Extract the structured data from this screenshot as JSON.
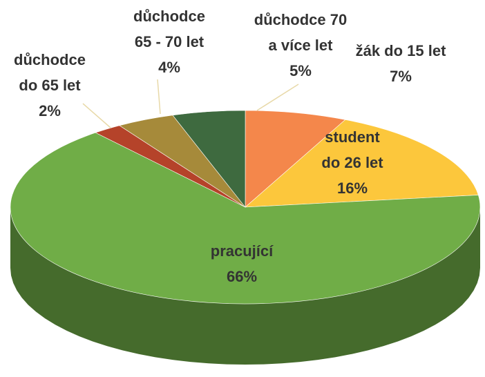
{
  "chart_data": {
    "type": "pie",
    "categories": [
      [
        "žák do 15 let"
      ],
      [
        "student",
        "do 26 let"
      ],
      [
        "pracující"
      ],
      [
        "důchodce",
        "do 65 let"
      ],
      [
        "důchodce",
        "65 - 70 let"
      ],
      [
        "důchodce 70",
        "a více let"
      ]
    ],
    "values": [
      7,
      16,
      66,
      2,
      4,
      5
    ],
    "value_labels": [
      "7%",
      "16%",
      "66%",
      "2%",
      "4%",
      "5%"
    ],
    "colors": [
      "#f4874b",
      "#fcc73c",
      "#70ad47",
      "#b5432a",
      "#a68a3a",
      "#3e6a3f"
    ]
  }
}
